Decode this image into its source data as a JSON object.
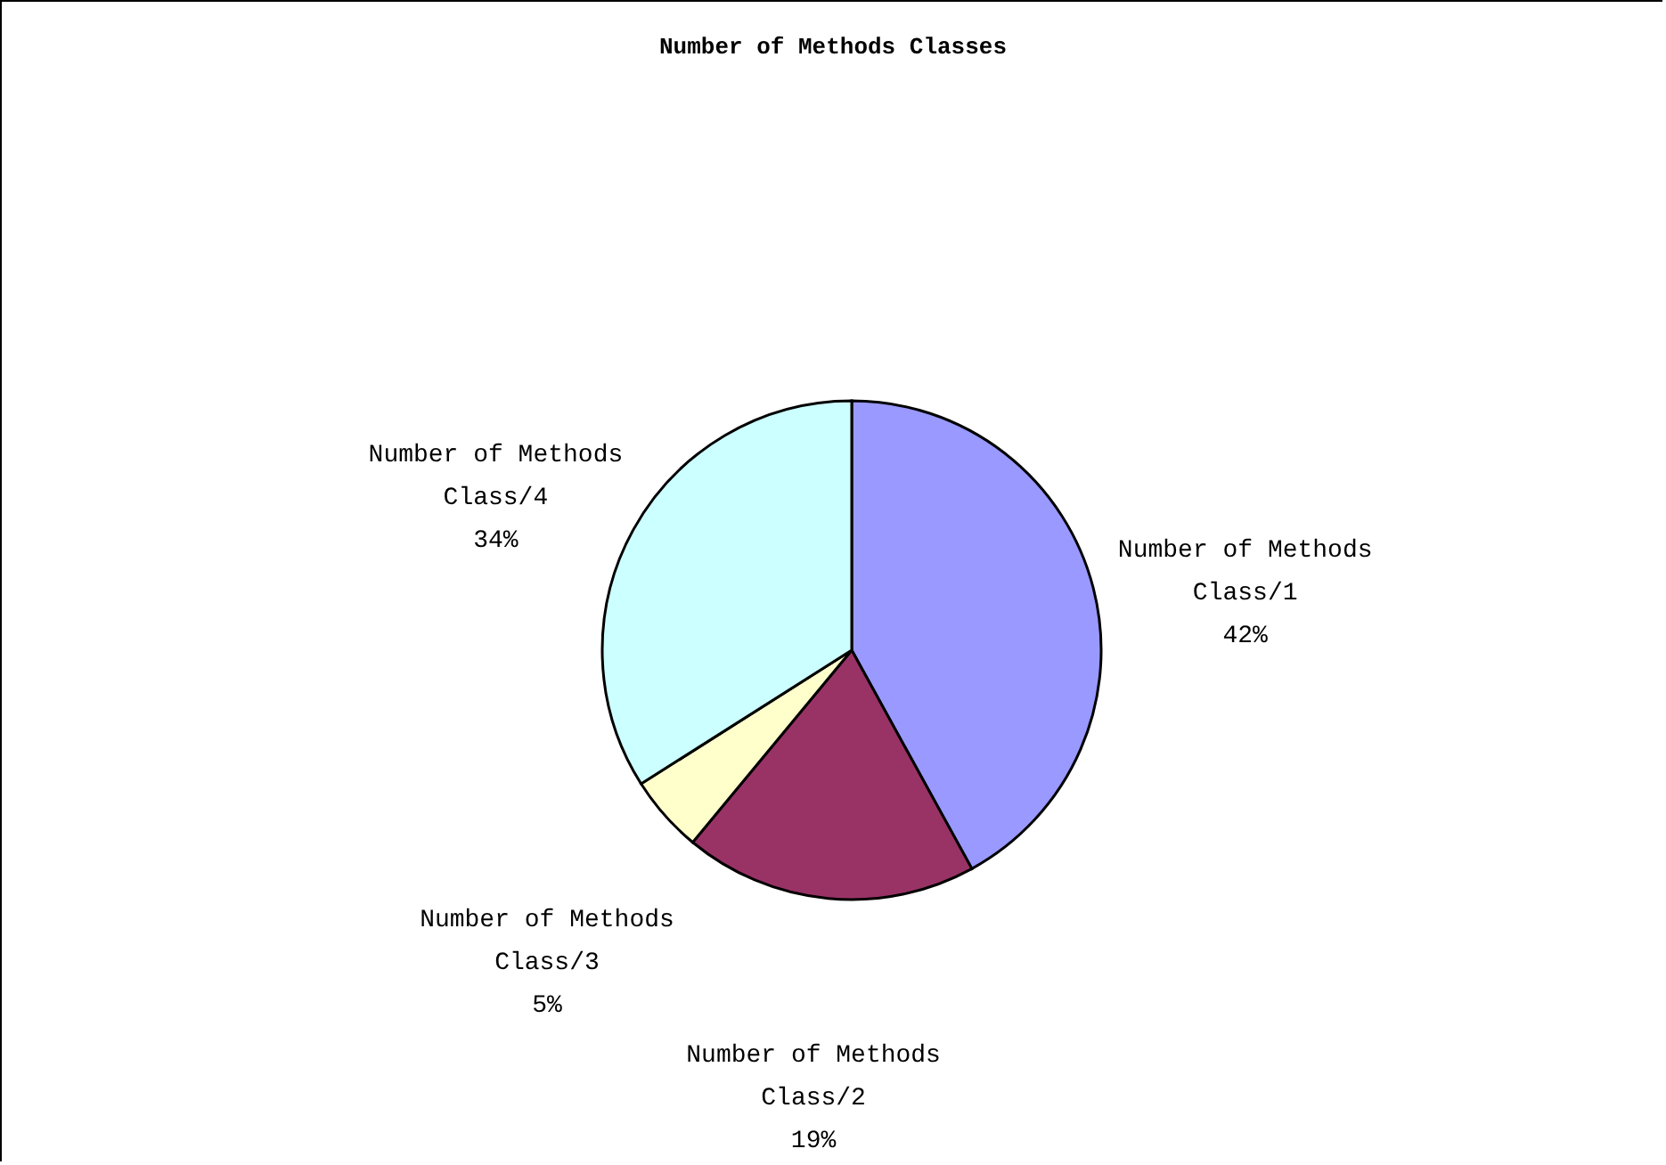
{
  "chart_data": {
    "type": "pie",
    "title": "Number of Methods Classes",
    "categories": [
      "Number of Methods Class/1",
      "Number of Methods Class/2",
      "Number of Methods Class/3",
      "Number of Methods Class/4"
    ],
    "values": [
      42,
      19,
      5,
      34
    ],
    "colors": [
      "#9999ff",
      "#993366",
      "#ffffcc",
      "#ccffff"
    ],
    "value_labels": [
      "42%",
      "19%",
      "5%",
      "34%"
    ],
    "legend": false
  }
}
